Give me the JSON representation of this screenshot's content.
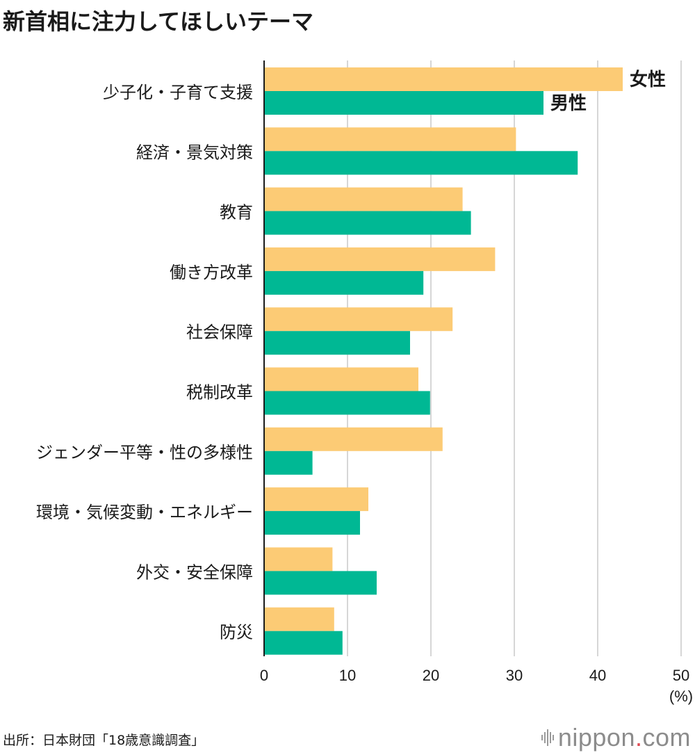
{
  "chart_data": {
    "type": "bar",
    "orientation": "horizontal",
    "title": "新首相に注力してほしいテーマ",
    "categories": [
      "少子化・子育て支援",
      "経済・景気対策",
      "教育",
      "働き方改革",
      "社会保障",
      "税制改革",
      "ジェンダー平等・性の多様性",
      "環境・気候変動・エネルギー",
      "外交・安全保障",
      "防災"
    ],
    "series": [
      {
        "name": "女性",
        "color": "#fccb75",
        "values": [
          43.0,
          30.2,
          23.8,
          27.7,
          22.6,
          18.5,
          21.4,
          12.5,
          8.2,
          8.4
        ]
      },
      {
        "name": "男性",
        "color": "#00b894",
        "values": [
          33.5,
          37.6,
          24.8,
          19.1,
          17.5,
          19.9,
          5.8,
          11.5,
          13.5,
          9.4
        ]
      }
    ],
    "xlim": [
      0,
      50
    ],
    "xticks": [
      0,
      10,
      20,
      30,
      40,
      50
    ],
    "unit_label": "(%)",
    "grid": true,
    "legend": "inline-next-to-first-bars"
  },
  "source": "出所：日本財団「18歳意識調査」",
  "brand": {
    "name": "nippon",
    "dot": ".",
    "suffix": "com"
  }
}
